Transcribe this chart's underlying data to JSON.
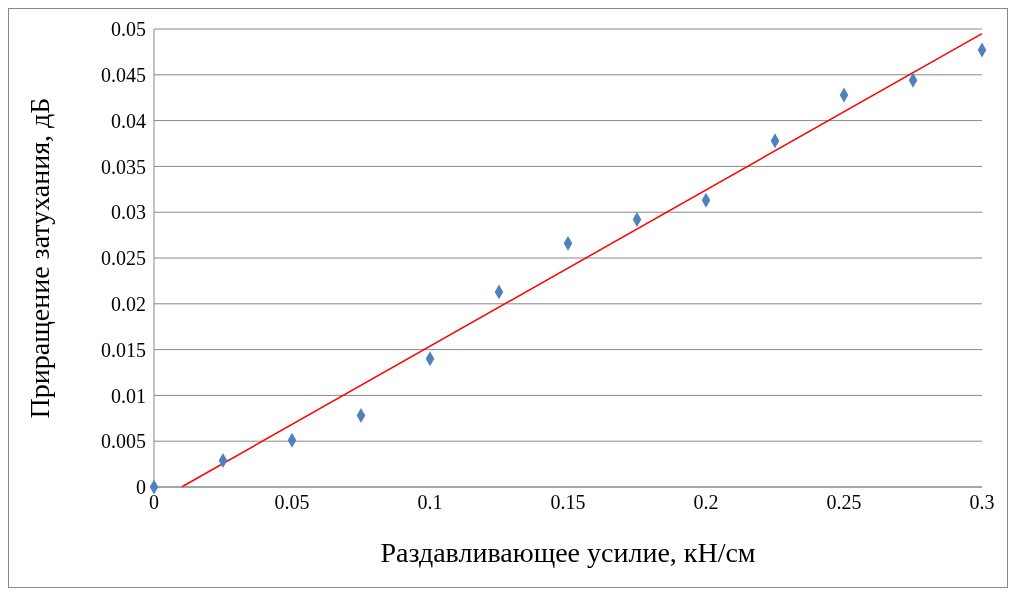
{
  "chart_data": {
    "type": "scatter",
    "xlabel": "Раздавливающее усилие, кН/см",
    "ylabel": "Приращение затухания,  дБ",
    "xlim": [
      0,
      0.3
    ],
    "xticks": [
      0,
      0.05,
      0.1,
      0.15,
      0.2,
      0.25,
      0.3
    ],
    "ylim": [
      0,
      0.05
    ],
    "yticks": [
      0,
      0.005,
      0.01,
      0.015,
      0.02,
      0.025,
      0.03,
      0.035,
      0.04,
      0.045,
      0.05
    ],
    "grid": "y",
    "marker": "diamond",
    "series": [
      {
        "color": "#4f81bd",
        "x": [
          0,
          0.025,
          0.05,
          0.075,
          0.1,
          0.125,
          0.15,
          0.175,
          0.2,
          0.225,
          0.25,
          0.275,
          0.3
        ],
        "values": [
          0,
          0.0029,
          0.0051,
          0.0078,
          0.014,
          0.0213,
          0.0266,
          0.0292,
          0.0313,
          0.0378,
          0.0428,
          0.0444,
          0.0477
        ]
      },
      {
        "type": "line",
        "color": "#ff0000",
        "marker": "none",
        "x": [
          0.01,
          0.3
        ],
        "values": [
          0,
          0.0495
        ]
      }
    ]
  }
}
